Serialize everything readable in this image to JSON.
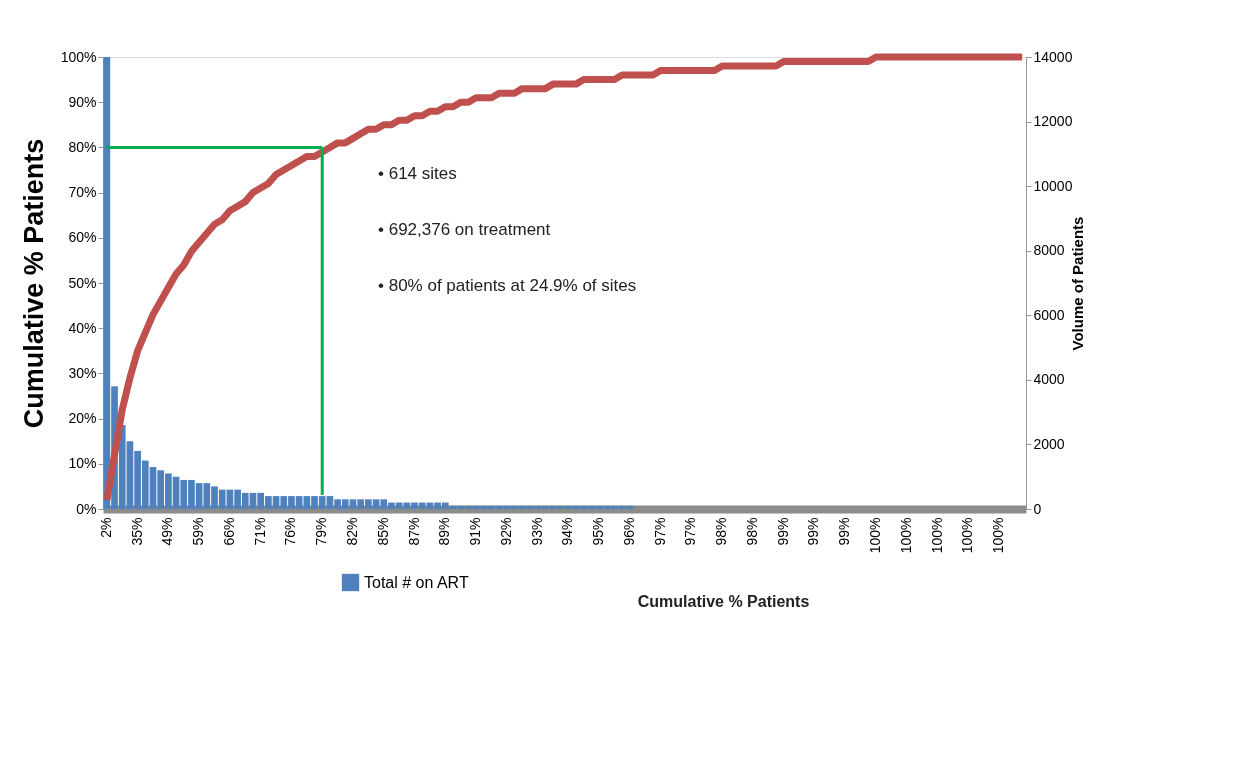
{
  "chart_data": {
    "type": "bar",
    "xlabel": "Cumulative  % Patients",
    "ylabel": "Cumulative % Patients",
    "y2label": "Volume of Patients",
    "legend": "bottom",
    "grid": false,
    "categories": [
      "2%",
      null,
      null,
      null,
      "35%",
      null,
      null,
      null,
      "49%",
      null,
      null,
      null,
      "59%",
      null,
      null,
      null,
      "66%",
      null,
      null,
      null,
      "71%",
      null,
      null,
      null,
      "76%",
      null,
      null,
      null,
      "79%",
      null,
      null,
      null,
      "82%",
      null,
      null,
      null,
      "85%",
      null,
      null,
      null,
      "87%",
      null,
      null,
      null,
      "89%",
      null,
      null,
      null,
      "91%",
      null,
      null,
      null,
      "92%",
      null,
      null,
      null,
      "93%",
      null,
      null,
      null,
      "94%",
      null,
      null,
      null,
      "95%",
      null,
      null,
      null,
      "96%",
      null,
      null,
      null,
      "97%",
      null,
      null,
      null,
      "97%",
      null,
      null,
      null,
      "98%",
      null,
      null,
      null,
      "98%",
      null,
      null,
      null,
      "99%",
      null,
      null,
      null,
      "99%",
      null,
      null,
      null,
      "99%",
      null,
      null,
      null,
      "100%",
      null,
      null,
      null,
      "100%",
      null,
      null,
      null,
      "100%",
      null,
      null,
      null,
      "100%",
      null,
      null,
      null,
      "100%",
      null,
      null,
      null
    ],
    "ylim": [
      0,
      100
    ],
    "yticks": [
      {
        "value": 0,
        "label": "0%"
      },
      {
        "value": 10,
        "label": "10%"
      },
      {
        "value": 20,
        "label": "20%"
      },
      {
        "value": 30,
        "label": "30%"
      },
      {
        "value": 40,
        "label": "40%"
      },
      {
        "value": 50,
        "label": "50%"
      },
      {
        "value": 60,
        "label": "60%"
      },
      {
        "value": 70,
        "label": "70%"
      },
      {
        "value": 80,
        "label": "80%"
      },
      {
        "value": 90,
        "label": "90%"
      },
      {
        "value": 100,
        "label": "100%"
      }
    ],
    "y2lim": [
      0,
      14000
    ],
    "y2ticks": [
      0,
      2000,
      4000,
      6000,
      8000,
      10000,
      12000,
      14000
    ],
    "series": [
      {
        "name": "Total # on ART",
        "axis": "y2",
        "color": "#4f81bd",
        "values": [
          14000,
          3800,
          2600,
          2100,
          1800,
          1500,
          1300,
          1200,
          1100,
          1000,
          900,
          900,
          800,
          800,
          700,
          600,
          600,
          600,
          500,
          500,
          500,
          400,
          400,
          400,
          400,
          400,
          400,
          400,
          400,
          400,
          300,
          300,
          300,
          300,
          300,
          300,
          300,
          200,
          200,
          200,
          200,
          200,
          200,
          200,
          200,
          100,
          100,
          100,
          100,
          100,
          100,
          100,
          100,
          100,
          100,
          100,
          100,
          100,
          100,
          100,
          100,
          100,
          100,
          100,
          100,
          100,
          100,
          100,
          100,
          0,
          0,
          0,
          0,
          0,
          0,
          0,
          0,
          0,
          0,
          0,
          0,
          0,
          0,
          0,
          0,
          0,
          0,
          0,
          0,
          0,
          0,
          0,
          0,
          0,
          0,
          0,
          0,
          0,
          0,
          0,
          0,
          0,
          0,
          0,
          0,
          0,
          0,
          0,
          0,
          0,
          0,
          0,
          0,
          0,
          0,
          0,
          0,
          0,
          0,
          0
        ]
      },
      {
        "type": "line",
        "color": "#c0504d",
        "values": [
          2,
          12,
          22,
          29,
          35,
          39,
          43,
          46,
          49,
          52,
          54,
          57,
          59,
          61,
          63,
          64,
          66,
          67,
          68,
          70,
          71,
          72,
          74,
          75,
          76,
          77,
          78,
          78,
          79,
          80,
          81,
          81,
          82,
          83,
          84,
          84,
          85,
          85,
          86,
          86,
          87,
          87,
          88,
          88,
          89,
          89,
          90,
          90,
          91,
          91,
          91,
          92,
          92,
          92,
          93,
          93,
          93,
          93,
          94,
          94,
          94,
          94,
          95,
          95,
          95,
          95,
          95,
          96,
          96,
          96,
          96,
          96,
          97,
          97,
          97,
          97,
          97,
          97,
          97,
          97,
          98,
          98,
          98,
          98,
          98,
          98,
          98,
          98,
          99,
          99,
          99,
          99,
          99,
          99,
          99,
          99,
          99,
          99,
          99,
          99,
          100,
          100,
          100,
          100,
          100,
          100,
          100,
          100,
          100,
          100,
          100,
          100,
          100,
          100,
          100,
          100,
          100,
          100,
          100,
          100
        ]
      }
    ],
    "ref_lines": [
      {
        "axis": "y",
        "value": 80,
        "color": "#00b050"
      },
      {
        "axis": "x",
        "value": "79%",
        "color": "#00b050"
      }
    ],
    "annotations": [
      "• 614 sites",
      "• 692,376 on treatment",
      "• 80% of patients at 24.9% of sites"
    ]
  }
}
